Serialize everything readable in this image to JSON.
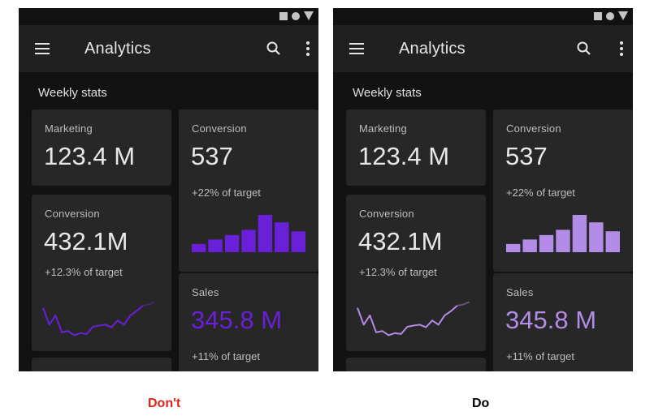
{
  "panels": [
    {
      "app_title": "Analytics",
      "section_title": "Weekly stats",
      "cards": {
        "marketing": {
          "label": "Marketing",
          "value": "123.4 M"
        },
        "conversion_right": {
          "label": "Conversion",
          "value": "537",
          "sub": "+22% of target"
        },
        "conversion_left": {
          "label": "Conversion",
          "value": "432.1M",
          "sub": "+12.3% of target"
        },
        "sales": {
          "label": "Sales",
          "value": "345.8 M",
          "sub": "+11% of target"
        }
      },
      "accent_color": "#6a1fd8",
      "sales_value_color": "#6a1fd8",
      "caption": "Don't",
      "caption_color": "#e0221a",
      "bars": [
        0.22,
        0.34,
        0.46,
        0.6,
        1.0,
        0.8,
        0.56
      ],
      "line": [
        0.7,
        0.3,
        0.52,
        0.12,
        0.15,
        0.05,
        0.1,
        0.08,
        0.25,
        0.28,
        0.3,
        0.24,
        0.4,
        0.3,
        0.52,
        0.62,
        0.75,
        0.78,
        0.84
      ]
    },
    {
      "app_title": "Analytics",
      "section_title": "Weekly stats",
      "cards": {
        "marketing": {
          "label": "Marketing",
          "value": "123.4 M"
        },
        "conversion_right": {
          "label": "Conversion",
          "value": "537",
          "sub": "+22% of target"
        },
        "conversion_left": {
          "label": "Conversion",
          "value": "432.1M",
          "sub": "+12.3% of target"
        },
        "sales": {
          "label": "Sales",
          "value": "345.8 M",
          "sub": "+11% of target"
        }
      },
      "accent_color": "#b28ce6",
      "sales_value_color": "#b28ce6",
      "caption": "Do",
      "caption_color": "#000000",
      "bars": [
        0.22,
        0.34,
        0.46,
        0.6,
        1.0,
        0.8,
        0.56
      ],
      "line": [
        0.7,
        0.3,
        0.52,
        0.12,
        0.15,
        0.05,
        0.1,
        0.08,
        0.25,
        0.28,
        0.3,
        0.24,
        0.4,
        0.3,
        0.52,
        0.62,
        0.75,
        0.78,
        0.84
      ]
    }
  ]
}
